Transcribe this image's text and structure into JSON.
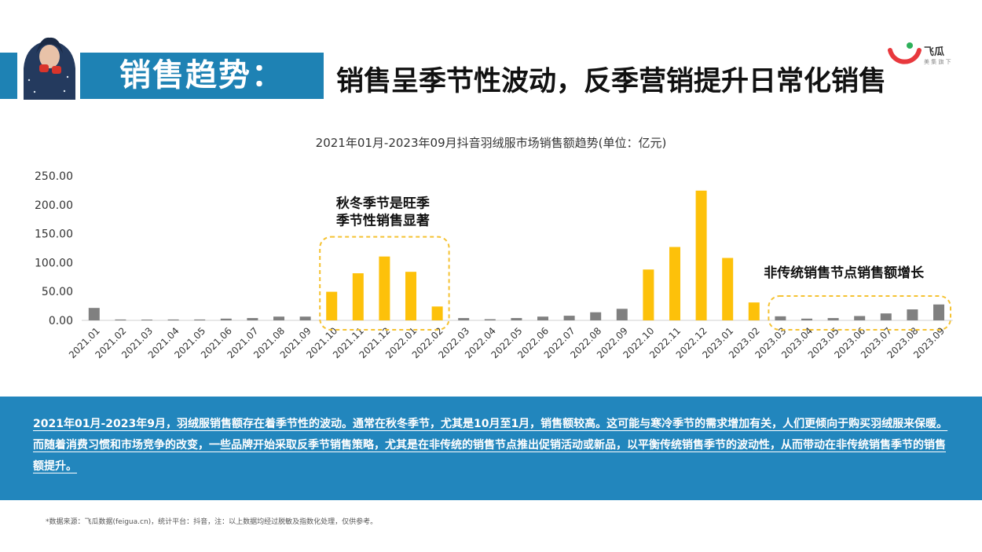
{
  "header": {
    "section_title": "销售趋势：",
    "headline": "销售呈季节性波动，反季营销提升日常化销售"
  },
  "logo": {
    "name": "飞瓜",
    "tagline": "美 集 旗 下"
  },
  "colors": {
    "header_band": "#1e82b4",
    "summary_band": "#2286bd",
    "peak_bar": "#fdc10a",
    "regular_bar": "#808080",
    "highlight_border": "#f5c232"
  },
  "chart_data": {
    "type": "bar",
    "title": "2021年01月-2023年09月抖音羽绒服市场销售额趋势(单位：亿元)",
    "xlabel": "",
    "ylabel": "",
    "ylim": [
      0,
      250
    ],
    "y_ticks": [
      "250.00",
      "200.00",
      "150.00",
      "100.00",
      "50.00",
      "0.00"
    ],
    "grid": false,
    "legend": "none",
    "categories": [
      "2021.01",
      "2021.02",
      "2021.03",
      "2021.04",
      "2021.05",
      "2021.06",
      "2021.07",
      "2021.08",
      "2021.09",
      "2021.10",
      "2021.11",
      "2021.12",
      "2022.01",
      "2022.02",
      "2022.03",
      "2022.04",
      "2022.05",
      "2022.06",
      "2022.07",
      "2022.08",
      "2022.09",
      "2022.10",
      "2022.11",
      "2022.12",
      "2023.01",
      "2023.02",
      "2023.03",
      "2023.04",
      "2023.05",
      "2023.06",
      "2023.07",
      "2023.08",
      "2023.09"
    ],
    "values": [
      21.5,
      1.5,
      1.3,
      1.5,
      1.5,
      3.0,
      4.0,
      6.5,
      6.5,
      49.5,
      81.5,
      110.5,
      84.0,
      24.0,
      4.0,
      2.0,
      4.0,
      6.5,
      8.0,
      14.0,
      20.0,
      88.0,
      127.0,
      224.5,
      108.0,
      31.0,
      7.0,
      3.0,
      4.0,
      7.5,
      12.0,
      19.0,
      27.5
    ],
    "highlight": [
      false,
      false,
      false,
      false,
      false,
      false,
      false,
      false,
      false,
      true,
      true,
      true,
      true,
      true,
      false,
      false,
      false,
      false,
      false,
      false,
      false,
      true,
      true,
      true,
      true,
      true,
      false,
      false,
      false,
      false,
      false,
      false,
      false
    ],
    "annotations": [
      {
        "lines": [
          "秋冬季节是旺季",
          "季节性销售显著"
        ],
        "from": 9,
        "to": 13
      },
      {
        "lines": [
          "非传统销售节点销售额增长"
        ],
        "from": 26,
        "to": 32
      }
    ]
  },
  "summary": "2021年01月-2023年9月，羽绒服销售额存在着季节性的波动。通常在秋冬季节，尤其是10月至1月，销售额较高。这可能与寒冷季节的需求增加有关，人们更倾向于购买羽绒服来保暖。而随着消费习惯和市场竞争的改变，一些品牌开始采取反季节销售策略，尤其是在非传统的销售节点推出促销活动或新品，以平衡传统销售季节的波动性，从而带动在非传统销售季节的销售额提升。",
  "footnote": "*数据来源：飞瓜数据(feigua.cn)，统计平台：抖音，注：以上数据均经过脱敏及指数化处理，仅供参考。"
}
